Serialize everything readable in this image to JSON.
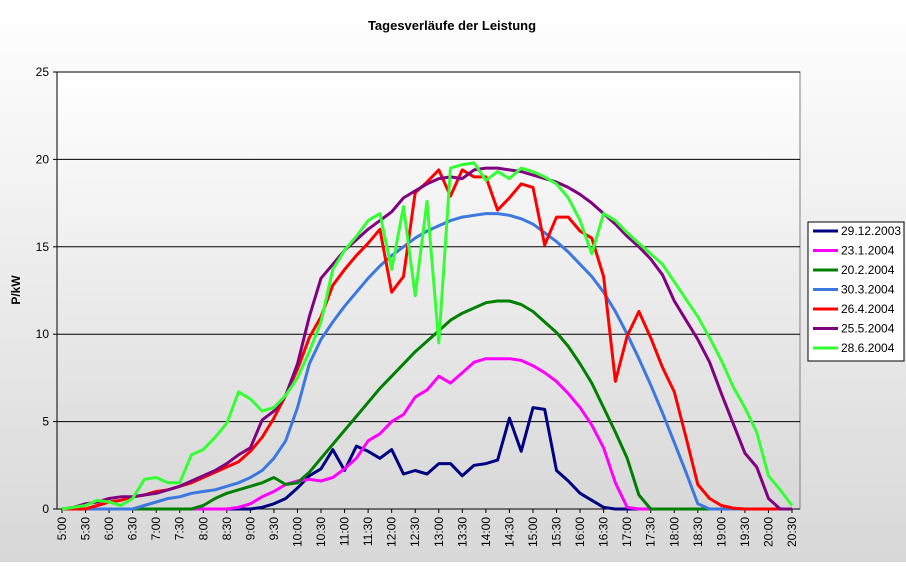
{
  "chart_data": {
    "type": "line",
    "title": "Tagesverläufe der Leistung",
    "y_label": "P/kW",
    "categories": [
      "5:00",
      null,
      "5:30",
      null,
      "6:00",
      null,
      "6:30",
      null,
      "7:00",
      null,
      "7:30",
      null,
      "8:00",
      null,
      "8:30",
      null,
      "9:00",
      null,
      "9:30",
      null,
      "10:00",
      null,
      "10:30",
      null,
      "11:00",
      null,
      "11:30",
      null,
      "12:00",
      null,
      "12:30",
      null,
      "13:00",
      null,
      "13:30",
      null,
      "14:00",
      null,
      "14:30",
      null,
      "15:00",
      null,
      "15:30",
      null,
      "16:00",
      null,
      "16:30",
      null,
      "17:00",
      null,
      "17:30",
      null,
      "18:00",
      null,
      "18:30",
      null,
      "19:00",
      null,
      "19:30",
      null,
      "20:00",
      null,
      "20:30"
    ],
    "ylim": [
      0,
      25
    ],
    "yticks": [
      0,
      5,
      10,
      15,
      20,
      25
    ],
    "grid": true,
    "legend": "right",
    "series": [
      {
        "name": "29.12.2003",
        "color": "#000080",
        "values": [
          0,
          0,
          0,
          0,
          0,
          0,
          0,
          0,
          0,
          0,
          0,
          0,
          0,
          0,
          0,
          0,
          0,
          0.1,
          0.3,
          0.6,
          1.2,
          1.9,
          2.3,
          3.4,
          2.2,
          3.6,
          3.3,
          2.9,
          3.4,
          2.0,
          2.2,
          2.0,
          2.6,
          2.6,
          1.9,
          2.5,
          2.6,
          2.8,
          5.2,
          3.3,
          5.8,
          5.7,
          2.2,
          1.6,
          0.9,
          0.5,
          0.1,
          0,
          0,
          0,
          0,
          0,
          0,
          0,
          0,
          0,
          0,
          0,
          0,
          0,
          0,
          0,
          0
        ]
      },
      {
        "name": "23.1.2004",
        "color": "#ff00ff",
        "values": [
          0,
          0,
          0,
          0,
          0,
          0,
          0,
          0,
          0,
          0,
          0,
          0,
          0,
          0,
          0,
          0.1,
          0.3,
          0.7,
          1.0,
          1.4,
          1.6,
          1.7,
          1.6,
          1.8,
          2.3,
          2.9,
          3.9,
          4.3,
          5.0,
          5.4,
          6.4,
          6.8,
          7.6,
          7.2,
          7.8,
          8.4,
          8.6,
          8.6,
          8.6,
          8.5,
          8.2,
          7.8,
          7.3,
          6.6,
          5.8,
          4.8,
          3.5,
          1.5,
          0.1,
          0,
          0,
          0,
          0,
          0,
          0,
          0,
          0,
          0,
          0,
          0,
          0,
          0,
          0
        ]
      },
      {
        "name": "20.2.2004",
        "color": "#008000",
        "values": [
          0,
          0,
          0,
          0,
          0,
          0,
          0,
          0,
          0,
          0,
          0,
          0,
          0.2,
          0.6,
          0.9,
          1.1,
          1.3,
          1.5,
          1.8,
          1.4,
          1.5,
          2.1,
          2.9,
          3.7,
          4.5,
          5.3,
          6.1,
          6.9,
          7.6,
          8.3,
          9.0,
          9.6,
          10.2,
          10.8,
          11.2,
          11.5,
          11.8,
          11.9,
          11.9,
          11.7,
          11.3,
          10.7,
          10.1,
          9.3,
          8.3,
          7.2,
          5.8,
          4.4,
          2.9,
          0.8,
          0,
          0,
          0,
          0,
          0,
          0,
          0,
          0,
          0,
          0,
          0,
          0,
          0
        ]
      },
      {
        "name": "30.3.2004",
        "color": "#3c78e0",
        "values": [
          0,
          0,
          0,
          0,
          0,
          0,
          0,
          0.2,
          0.4,
          0.6,
          0.7,
          0.9,
          1.0,
          1.1,
          1.3,
          1.5,
          1.8,
          2.2,
          2.9,
          3.9,
          5.8,
          8.3,
          9.7,
          10.7,
          11.6,
          12.4,
          13.2,
          13.9,
          14.5,
          15.0,
          15.5,
          15.9,
          16.2,
          16.5,
          16.7,
          16.8,
          16.9,
          16.9,
          16.8,
          16.6,
          16.3,
          15.8,
          15.3,
          14.7,
          14.0,
          13.3,
          12.4,
          11.3,
          10.0,
          8.6,
          7.1,
          5.5,
          3.8,
          2.1,
          0.3,
          0,
          0,
          0,
          0,
          0,
          0,
          0,
          0
        ]
      },
      {
        "name": "26.4.2004",
        "color": "#ff0000",
        "values": [
          0,
          0,
          0,
          0.2,
          0.4,
          0.5,
          0.7,
          0.8,
          1.0,
          1.1,
          1.3,
          1.5,
          1.8,
          2.1,
          2.4,
          2.7,
          3.3,
          4.1,
          5.2,
          6.5,
          8.0,
          9.8,
          11.0,
          12.8,
          13.7,
          14.5,
          15.2,
          16.0,
          12.4,
          13.3,
          18.1,
          18.7,
          19.4,
          17.9,
          19.4,
          19.0,
          19.0,
          17.1,
          17.8,
          18.6,
          18.4,
          15.1,
          16.7,
          16.7,
          15.9,
          15.5,
          13.3,
          7.3,
          9.9,
          11.3,
          9.8,
          8.1,
          6.7,
          4.1,
          1.4,
          0.6,
          0.2,
          0.05,
          0,
          0,
          0,
          0,
          0
        ]
      },
      {
        "name": "25.5.2004",
        "color": "#800080",
        "values": [
          0,
          0.1,
          0.3,
          0.4,
          0.6,
          0.7,
          0.7,
          0.8,
          0.9,
          1.1,
          1.3,
          1.6,
          1.9,
          2.2,
          2.6,
          3.1,
          3.5,
          5.1,
          5.6,
          6.5,
          8.3,
          11.0,
          13.2,
          14.0,
          14.8,
          15.4,
          16.0,
          16.5,
          17.0,
          17.8,
          18.2,
          18.6,
          18.9,
          19.0,
          18.9,
          19.4,
          19.5,
          19.5,
          19.4,
          19.3,
          19.1,
          18.9,
          18.7,
          18.4,
          18.0,
          17.5,
          16.9,
          16.3,
          15.6,
          15.0,
          14.3,
          13.4,
          11.9,
          10.8,
          9.7,
          8.4,
          6.6,
          4.9,
          3.2,
          2.4,
          0.6,
          0,
          0
        ]
      },
      {
        "name": "28.6.2004",
        "color": "#33ff33",
        "values": [
          0,
          0.1,
          0.2,
          0.5,
          0.4,
          0.2,
          0.6,
          1.7,
          1.8,
          1.5,
          1.5,
          3.1,
          3.4,
          4.1,
          4.9,
          6.7,
          6.3,
          5.6,
          5.8,
          6.5,
          7.5,
          9.0,
          10.7,
          13.7,
          14.8,
          15.6,
          16.5,
          16.9,
          13.7,
          17.3,
          12.2,
          17.6,
          9.5,
          19.5,
          19.7,
          19.8,
          18.8,
          19.3,
          18.9,
          19.5,
          19.3,
          19.0,
          18.6,
          17.8,
          16.5,
          14.6,
          16.9,
          16.5,
          15.8,
          15.2,
          14.6,
          14.0,
          13.0,
          12.0,
          11.0,
          9.8,
          8.5,
          7.0,
          5.8,
          4.4,
          1.9,
          1.1,
          0.2
        ]
      }
    ]
  }
}
